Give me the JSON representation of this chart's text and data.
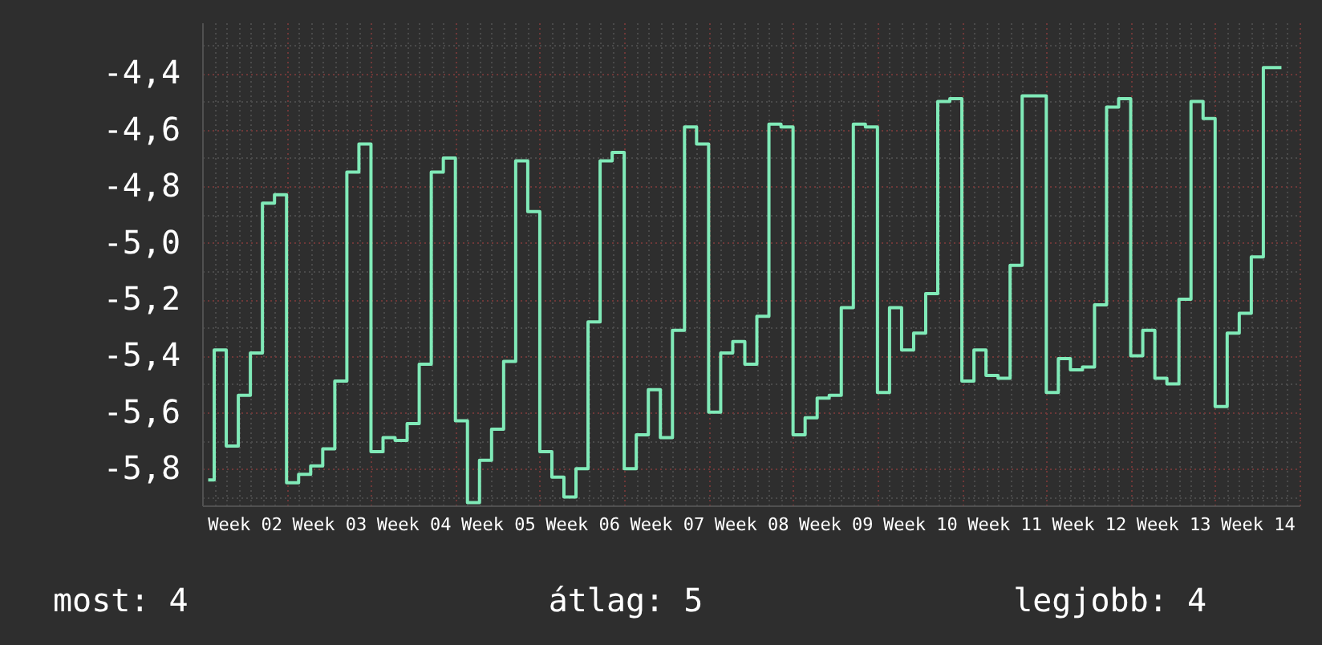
{
  "chart_data": {
    "type": "step",
    "categories": [
      null,
      null,
      null,
      "Week 02",
      null,
      null,
      null,
      null,
      null,
      null,
      "Week 03",
      null,
      null,
      null,
      null,
      null,
      null,
      "Week 04",
      null,
      null,
      null,
      null,
      null,
      null,
      "Week 05",
      null,
      null,
      null,
      null,
      null,
      null,
      "Week 06",
      null,
      null,
      null,
      null,
      null,
      null,
      "Week 07",
      null,
      null,
      null,
      null,
      null,
      null,
      "Week 08",
      null,
      null,
      null,
      null,
      null,
      null,
      "Week 09",
      null,
      null,
      null,
      null,
      null,
      null,
      "Week 10",
      null,
      null,
      null,
      null,
      null,
      null,
      "Week 11",
      null,
      null,
      null,
      null,
      null,
      null,
      "Week 12",
      null,
      null,
      null,
      null,
      null,
      null,
      "Week 13",
      null,
      null,
      null,
      null,
      null,
      null,
      "Week 14",
      null,
      null,
      null
    ],
    "series": [
      {
        "color": "#80eab8",
        "values": [
          -5.84,
          -5.38,
          -5.72,
          -5.54,
          -5.39,
          -4.86,
          -4.83,
          -5.85,
          -5.82,
          -5.79,
          -5.73,
          -5.49,
          -4.75,
          -4.65,
          -5.74,
          -5.69,
          -5.7,
          -5.64,
          -5.43,
          -4.75,
          -4.7,
          -5.63,
          -5.92,
          -5.77,
          -5.66,
          -5.42,
          -4.71,
          -4.89,
          -5.74,
          -5.83,
          -5.9,
          -5.8,
          -5.28,
          -4.71,
          -4.68,
          -5.8,
          -5.68,
          -5.52,
          -5.69,
          -5.31,
          -4.59,
          -4.65,
          -5.6,
          -5.39,
          -5.35,
          -5.43,
          -5.26,
          -4.58,
          -4.59,
          -5.68,
          -5.62,
          -5.55,
          -5.54,
          -5.23,
          -4.58,
          -4.59,
          -5.53,
          -5.23,
          -5.38,
          -5.32,
          -5.18,
          -4.5,
          -4.49,
          -5.49,
          -5.38,
          -5.47,
          -5.48,
          -5.08,
          -4.48,
          -4.48,
          -5.53,
          -5.41,
          -5.45,
          -5.44,
          -5.22,
          -4.52,
          -4.49,
          -5.4,
          -5.31,
          -5.48,
          -5.5,
          -5.2,
          -4.5,
          -4.56,
          -5.58,
          -5.32,
          -5.25,
          -5.05,
          -4.38,
          -4.38,
          null
        ]
      }
    ],
    "ylim": [
      -5.93,
      -4.22
    ],
    "yticks": [
      {
        "value": -5.9,
        "label": null
      },
      {
        "value": -5.8,
        "label": "-5,8"
      },
      {
        "value": -5.7,
        "label": null
      },
      {
        "value": -5.6,
        "label": "-5,6"
      },
      {
        "value": -5.5,
        "label": null
      },
      {
        "value": -5.4,
        "label": "-5,4"
      },
      {
        "value": -5.3,
        "label": null
      },
      {
        "value": -5.2,
        "label": "-5,2"
      },
      {
        "value": -5.1,
        "label": null
      },
      {
        "value": -5.0,
        "label": "-5,0"
      },
      {
        "value": -4.9,
        "label": null
      },
      {
        "value": -4.8,
        "label": "-4,8"
      },
      {
        "value": -4.7,
        "label": null
      },
      {
        "value": -4.6,
        "label": "-4,6"
      },
      {
        "value": -4.5,
        "label": null
      },
      {
        "value": -4.4,
        "label": "-4,4"
      },
      {
        "value": -4.3,
        "label": null
      }
    ],
    "grid": true,
    "annotations": [
      "most: 4",
      "átlag: 5",
      "legjobb: 4"
    ]
  }
}
